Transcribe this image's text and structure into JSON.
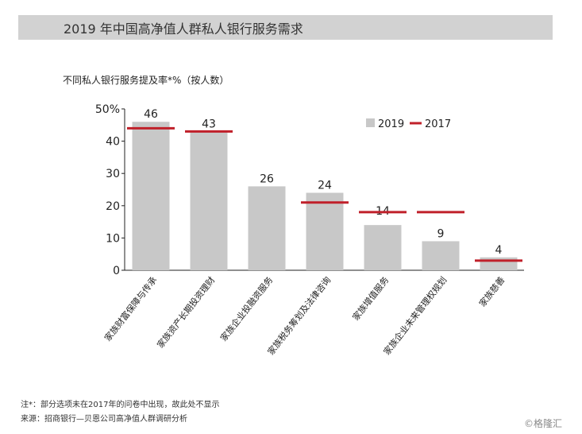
{
  "title": "2019 年中国高净值人群私人银行服务需求",
  "subtitle": "不同私人银行服务提及率*%（按人数）",
  "chart_data": {
    "type": "bar",
    "categories": [
      "家族财富保障与传承",
      "家族资产长期投资理财",
      "家族企业投融资服务",
      "家族税务筹划及法律咨询",
      "家族增值服务",
      "家族企业未来管理权规划",
      "家族慈善"
    ],
    "series": [
      {
        "name": "2019",
        "type": "bar",
        "color": "#c8c8c8",
        "values": [
          46,
          43,
          26,
          24,
          14,
          9,
          4
        ],
        "labels": [
          "46",
          "43",
          "26",
          "24",
          "14",
          "9",
          "4"
        ]
      },
      {
        "name": "2017",
        "type": "marker",
        "color": "#c0202a",
        "values": [
          44,
          43,
          null,
          21,
          18,
          18,
          3
        ]
      }
    ],
    "yticks": [
      "0",
      "10",
      "20",
      "30",
      "40",
      "50%"
    ],
    "ylim": [
      0,
      50
    ],
    "legend": "top-right"
  },
  "footnote": "注*：部分选项未在2017年的问卷中出现，故此处不显示",
  "source": "来源：招商银行—贝恩公司高净值人群调研分析",
  "watermark": "©格隆汇"
}
